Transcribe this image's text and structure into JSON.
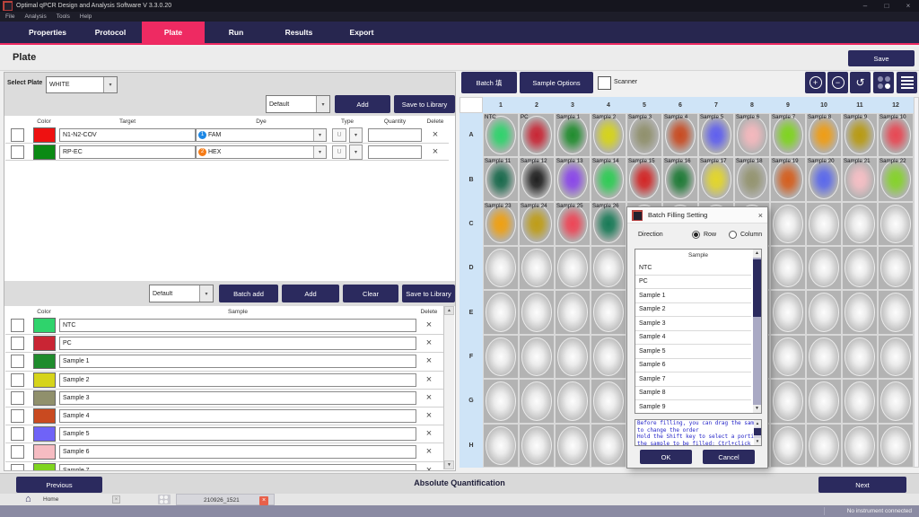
{
  "colors": {
    "accent": "#ee2a62",
    "navy": "#2b2a5e",
    "plate_header_blue": "#cfe4f7",
    "well_tray_gray": "#b3b3b3"
  },
  "window": {
    "title": "Optimal qPCR Design and Analysis Software  V 3.3.0.20",
    "menu": [
      "File",
      "Analysis",
      "Tools",
      "Help"
    ],
    "controls": [
      "–",
      "□",
      "×"
    ]
  },
  "nav": {
    "tabs": [
      "Properties",
      "Protocol",
      "Plate",
      "Run",
      "Results",
      "Export"
    ],
    "active": "Plate"
  },
  "header": {
    "title": "Plate",
    "save_label": "Save"
  },
  "targets": {
    "select_label": "Select Plate",
    "select_value": "WHITE",
    "preset_value": "Default",
    "add_label": "Add",
    "save_library_label": "Save to Library",
    "columns": [
      "Color",
      "Target",
      "Dye",
      "Type",
      "Quantity",
      "Delete"
    ],
    "rows": [
      {
        "color": "#ee1111",
        "target": "N1-N2-COV",
        "dye": "FAM",
        "dye_badge": "1",
        "dye_badge_color": "#1e88e5"
      },
      {
        "color": "#0b8a14",
        "target": "RP-EC",
        "dye": "HEX",
        "dye_badge": "2",
        "dye_badge_color": "#f57c17"
      }
    ]
  },
  "samples": {
    "preset_value": "Default",
    "batch_add_label": "Batch add",
    "add_label": "Add",
    "clear_label": "Clear",
    "save_library_label": "Save to Library",
    "columns": [
      "Color",
      "Sample",
      "Delete"
    ],
    "rows": [
      {
        "color": "#2fd36c",
        "name": "NTC"
      },
      {
        "color": "#c92534",
        "name": "PC"
      },
      {
        "color": "#1f8c2d",
        "name": "Sample 1"
      },
      {
        "color": "#d6d41a",
        "name": "Sample 2"
      },
      {
        "color": "#90906c",
        "name": "Sample 3"
      },
      {
        "color": "#c94a20",
        "name": "Sample 4"
      },
      {
        "color": "#6f63f7",
        "name": "Sample 5"
      },
      {
        "color": "#f6bcc2",
        "name": "Sample 6"
      },
      {
        "color": "#7fd41f",
        "name": "Sample 7"
      }
    ]
  },
  "plate": {
    "batch_fill_label": "Batch 填",
    "sample_options_label": "Sample Options",
    "scanner_label": "Scanner",
    "columns": [
      "1",
      "2",
      "3",
      "4",
      "5",
      "6",
      "7",
      "8",
      "9",
      "10",
      "11",
      "12"
    ],
    "rows": [
      "A",
      "B",
      "C",
      "D",
      "E",
      "F",
      "G",
      "H"
    ],
    "wells": [
      {
        "label": "NTC",
        "color": "#2fd36c"
      },
      {
        "label": "PC",
        "color": "#c92534"
      },
      {
        "label": "Sample 1",
        "color": "#1f8c2d"
      },
      {
        "label": "Sample 2",
        "color": "#d6d41a"
      },
      {
        "label": "Sample 3",
        "color": "#90906c"
      },
      {
        "label": "Sample 4",
        "color": "#c94a20"
      },
      {
        "label": "Sample 5",
        "color": "#5f5fef"
      },
      {
        "label": "Sample 6",
        "color": "#f4b8bd"
      },
      {
        "label": "Sample 7",
        "color": "#7fd41f"
      },
      {
        "label": "Sample 8",
        "color": "#ef9d14"
      },
      {
        "label": "Sample 9",
        "color": "#b89a10"
      },
      {
        "label": "Sample 10",
        "color": "#e84753"
      },
      {
        "label": "Sample 11",
        "color": "#17694b"
      },
      {
        "label": "Sample 12",
        "color": "#1f1f1f"
      },
      {
        "label": "Sample 13",
        "color": "#8a46ea"
      },
      {
        "label": "Sample 14",
        "color": "#2fcc55"
      },
      {
        "label": "Sample 15",
        "color": "#d32525"
      },
      {
        "label": "Sample 16",
        "color": "#1d7a35"
      },
      {
        "label": "Sample 17",
        "color": "#e3d62a"
      },
      {
        "label": "Sample 18",
        "color": "#94946f"
      },
      {
        "label": "Sample 19",
        "color": "#d55e1d"
      },
      {
        "label": "Sample 20",
        "color": "#5a68ec"
      },
      {
        "label": "Sample 21",
        "color": "#f6bfc5"
      },
      {
        "label": "Sample 22",
        "color": "#85d32a"
      },
      {
        "label": "Sample 23",
        "color": "#efa011"
      },
      {
        "label": "Sample 24",
        "color": "#bf9d16"
      },
      {
        "label": "Sample 25",
        "color": "#ee4556"
      },
      {
        "label": "Sample 26",
        "color": "#177a56"
      }
    ]
  },
  "dialog": {
    "title": "Batch Filling Setting",
    "close_glyph": "×",
    "direction_label": "Direction",
    "options": [
      "Row",
      "Column"
    ],
    "selected_option": "Row",
    "list_header": "Sample",
    "items": [
      "NTC",
      "PC",
      "Sample 1",
      "Sample 2",
      "Sample 3",
      "Sample 4",
      "Sample 5",
      "Sample 6",
      "Sample 7",
      "Sample 8",
      "Sample 9"
    ],
    "info_lines": [
      "Before filling, you can drag the samples",
      "to change the order",
      "Hold the Shift key to select a portion of",
      "the sample to be filled; Ctrl+click each"
    ],
    "ok_label": "OK",
    "cancel_label": "Cancel"
  },
  "footer": {
    "previous_label": "Previous",
    "mode_label": "Absolute Quantification",
    "next_label": "Next"
  },
  "taskbar": {
    "home_label": "Home",
    "tab_label": "210926_1521"
  },
  "statusbar": {
    "text": "No instrument connected"
  }
}
